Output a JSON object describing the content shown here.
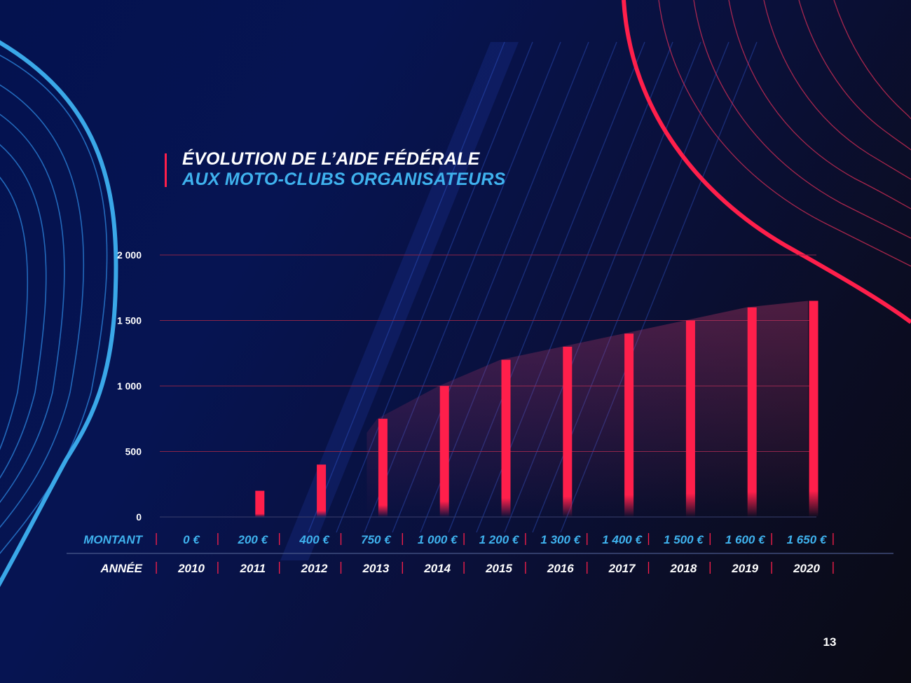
{
  "title": {
    "line1": "ÉVOLUTION DE L’AIDE FÉDÉRALE",
    "line2": "AUX MOTO-CLUBS ORGANISATEURS"
  },
  "page_number": "13",
  "colors": {
    "accent_red": "#ff1f4b",
    "accent_blue": "#3fb2ee",
    "text": "#ffffff"
  },
  "chart_data": {
    "type": "bar",
    "title": "ÉVOLUTION DE L’AIDE FÉDÉRALE AUX MOTO-CLUBS ORGANISATEURS",
    "categories": [
      "2010",
      "2011",
      "2012",
      "2013",
      "2014",
      "2015",
      "2016",
      "2017",
      "2018",
      "2019",
      "2020"
    ],
    "values": [
      0,
      200,
      400,
      750,
      1000,
      1200,
      1300,
      1400,
      1500,
      1600,
      1650
    ],
    "value_labels": [
      "0 €",
      "200 €",
      "400 €",
      "750 €",
      "1 000 €",
      "1 200 €",
      "1 300 €",
      "1 400 €",
      "1 500 €",
      "1 600 €",
      "1 650 €"
    ],
    "ylim": [
      0,
      2000
    ],
    "yticks": [
      0,
      500,
      1000,
      1500,
      2000
    ],
    "ytick_labels": [
      "0",
      "500",
      "1 000",
      "1 500",
      "2 000"
    ],
    "row_labels": {
      "amount": "MONTANT",
      "year": "ANNÉE"
    },
    "grid": true,
    "bar_color": "#ff1f4b"
  }
}
